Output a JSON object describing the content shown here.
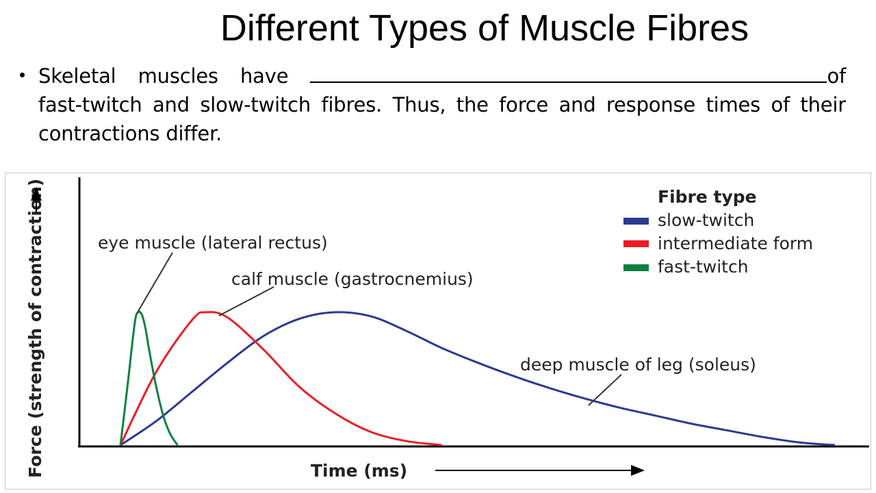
{
  "slide": {
    "title": "Different Types of Muscle Fibres",
    "bullet_part1": "Skeletal muscles have ",
    "bullet_part2": "of fast-twitch and slow-twitch fibres. Thus, the force and response times of their contractions differ."
  },
  "chart_data": {
    "type": "line",
    "title": "",
    "xlabel": "Time (ms)",
    "ylabel": "Force (strength of contraction)",
    "legend_title": "Fibre type",
    "legend_position": "top-right",
    "grid": false,
    "xlim": [
      0,
      100
    ],
    "ylim": [
      0,
      100
    ],
    "series": [
      {
        "name": "slow-twitch",
        "color": "#2b3990",
        "label": "deep muscle of leg (soleus)",
        "x": [
          0,
          5,
          10,
          15,
          20,
          25,
          30,
          35,
          40,
          45,
          50,
          55,
          60,
          65,
          70,
          75,
          80,
          85,
          90,
          95,
          100
        ],
        "y": [
          0,
          18,
          40,
          62,
          82,
          95,
          100,
          97,
          86,
          73,
          62,
          52,
          43,
          35,
          28,
          22,
          16,
          11,
          6,
          2,
          0
        ]
      },
      {
        "name": "intermediate form",
        "color": "#ed1c24",
        "label": "calf muscle (gastrocnemius)",
        "x": [
          0,
          5,
          10,
          12,
          15,
          20,
          25,
          30,
          35,
          40,
          45
        ],
        "y": [
          0,
          55,
          94,
          100,
          96,
          72,
          44,
          24,
          10,
          3,
          0
        ]
      },
      {
        "name": "fast-twitch",
        "color": "#0a8040",
        "label": "eye muscle (lateral rectus)",
        "x": [
          0,
          1,
          2,
          2.5,
          3,
          3.5,
          4,
          5,
          6,
          7,
          8
        ],
        "y": [
          0,
          45,
          92,
          100,
          98,
          88,
          72,
          44,
          22,
          8,
          0
        ]
      }
    ]
  }
}
